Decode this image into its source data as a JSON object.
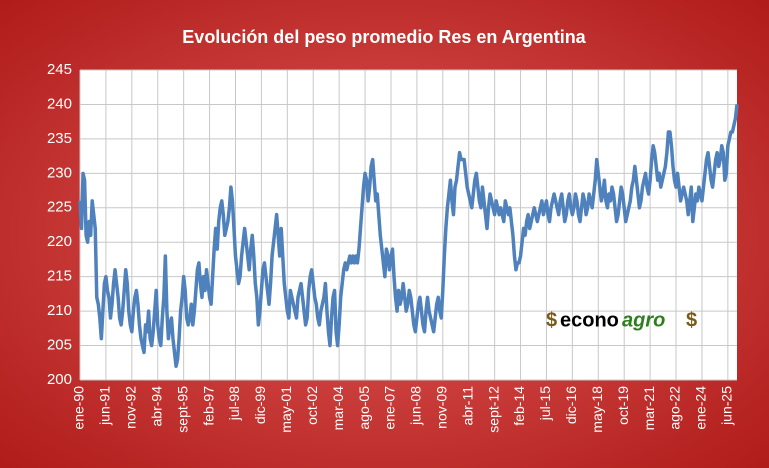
{
  "chart_data": {
    "type": "line",
    "title": "Evolución del peso promedio Res en Argentina",
    "logo": [
      "$",
      "econo",
      "agro",
      "$"
    ],
    "color": "#4f81bd",
    "grid": true,
    "ylim": [
      200,
      245
    ],
    "yticks": [
      200,
      205,
      210,
      215,
      220,
      225,
      230,
      235,
      240,
      245
    ],
    "categories": [
      "ene-90",
      null,
      null,
      null,
      null,
      null,
      null,
      null,
      null,
      null,
      null,
      null,
      null,
      null,
      null,
      null,
      null,
      "jun-91",
      null,
      null,
      null,
      null,
      null,
      null,
      null,
      null,
      null,
      null,
      null,
      null,
      null,
      null,
      null,
      null,
      "nov-92",
      null,
      null,
      null,
      null,
      null,
      null,
      null,
      null,
      null,
      null,
      null,
      null,
      null,
      null,
      null,
      null,
      "abr-94",
      null,
      null,
      null,
      null,
      null,
      null,
      null,
      null,
      null,
      null,
      null,
      null,
      null,
      null,
      null,
      null,
      "sept-95",
      null,
      null,
      null,
      null,
      null,
      null,
      null,
      null,
      null,
      null,
      null,
      null,
      null,
      null,
      null,
      null,
      "feb-97",
      null,
      null,
      null,
      null,
      null,
      null,
      null,
      null,
      null,
      null,
      null,
      null,
      null,
      null,
      null,
      null,
      "jul-98",
      null,
      null,
      null,
      null,
      null,
      null,
      null,
      null,
      null,
      null,
      null,
      null,
      null,
      null,
      null,
      null,
      "dic-99",
      null,
      null,
      null,
      null,
      null,
      null,
      null,
      null,
      null,
      null,
      null,
      null,
      null,
      null,
      null,
      null,
      "may-01",
      null,
      null,
      null,
      null,
      null,
      null,
      null,
      null,
      null,
      null,
      null,
      null,
      null,
      null,
      null,
      null,
      "oct-02",
      null,
      null,
      null,
      null,
      null,
      null,
      null,
      null,
      null,
      null,
      null,
      null,
      null,
      null,
      null,
      null,
      "mar-04",
      null,
      null,
      null,
      null,
      null,
      null,
      null,
      null,
      null,
      null,
      null,
      null,
      null,
      null,
      null,
      null,
      "ago-05",
      null,
      null,
      null,
      null,
      null,
      null,
      null,
      null,
      null,
      null,
      null,
      null,
      null,
      null,
      null,
      null,
      "ene-07",
      null,
      null,
      null,
      null,
      null,
      null,
      null,
      null,
      null,
      null,
      null,
      null,
      null,
      null,
      null,
      null,
      "jun-08",
      null,
      null,
      null,
      null,
      null,
      null,
      null,
      null,
      null,
      null,
      null,
      null,
      null,
      null,
      null,
      null,
      "nov-09",
      null,
      null,
      null,
      null,
      null,
      null,
      null,
      null,
      null,
      null,
      null,
      null,
      null,
      null,
      null,
      null,
      "abr-11",
      null,
      null,
      null,
      null,
      null,
      null,
      null,
      null,
      null,
      null,
      null,
      null,
      null,
      null,
      null,
      null,
      "sept-12",
      null,
      null,
      null,
      null,
      null,
      null,
      null,
      null,
      null,
      null,
      null,
      null,
      null,
      null,
      null,
      null,
      "feb-14",
      null,
      null,
      null,
      null,
      null,
      null,
      null,
      null,
      null,
      null,
      null,
      null,
      null,
      null,
      null,
      null,
      "jul-15",
      null,
      null,
      null,
      null,
      null,
      null,
      null,
      null,
      null,
      null,
      null,
      null,
      null,
      null,
      null,
      null,
      "dic-16",
      null,
      null,
      null,
      null,
      null,
      null,
      null,
      null,
      null,
      null,
      null,
      null,
      null,
      null,
      null,
      null,
      "may-18",
      null,
      null,
      null,
      null,
      null,
      null,
      null,
      null,
      null,
      null,
      null,
      null,
      null,
      null,
      null,
      null,
      "oct-19",
      null,
      null,
      null,
      null,
      null,
      null,
      null,
      null,
      null,
      null,
      null,
      null,
      null,
      null,
      null,
      null,
      "mar-21",
      null,
      null,
      null,
      null,
      null,
      null,
      null,
      null,
      null,
      null,
      null,
      null,
      null,
      null,
      null,
      null,
      "ago-22",
      null,
      null,
      null,
      null,
      null,
      null,
      null,
      null,
      null,
      null,
      null,
      null,
      null,
      null,
      null,
      null,
      "ene-24",
      null,
      null,
      null,
      null,
      null,
      null,
      null,
      null,
      null,
      null,
      null,
      null,
      null,
      null,
      null,
      null,
      "jun-25",
      null,
      null,
      null,
      null,
      null,
      null
    ],
    "values": [
      226,
      222,
      230,
      229,
      221,
      220,
      223,
      221,
      226,
      224,
      222,
      212,
      211,
      209,
      206,
      210,
      214,
      215,
      213,
      212,
      209,
      211,
      214,
      216,
      214,
      212,
      209,
      208,
      210,
      213,
      216,
      214,
      210,
      208,
      207,
      210,
      212,
      213,
      211,
      208,
      206,
      205,
      204,
      208,
      207,
      210,
      206,
      205,
      207,
      210,
      213,
      208,
      206,
      205,
      209,
      212,
      218,
      210,
      206,
      208,
      209,
      206,
      204,
      202,
      203,
      206,
      210,
      212,
      215,
      213,
      209,
      208,
      209,
      211,
      208,
      210,
      213,
      216,
      217,
      214,
      212,
      215,
      213,
      216,
      214,
      212,
      211,
      215,
      219,
      222,
      219,
      223,
      225,
      226,
      224,
      221,
      222,
      223,
      225,
      228,
      226,
      222,
      218,
      216,
      214,
      215,
      218,
      220,
      222,
      220,
      218,
      216,
      219,
      221,
      218,
      214,
      212,
      208,
      210,
      213,
      216,
      217,
      215,
      213,
      211,
      214,
      218,
      220,
      222,
      224,
      221,
      218,
      222,
      218,
      214,
      212,
      210,
      209,
      213,
      212,
      211,
      210,
      209,
      212,
      213,
      214,
      212,
      210,
      208,
      209,
      213,
      215,
      216,
      214,
      212,
      211,
      209,
      208,
      210,
      211,
      212,
      214,
      210,
      207,
      205,
      209,
      212,
      213,
      207,
      205,
      208,
      212,
      214,
      216,
      217,
      216,
      217,
      218,
      217,
      218,
      217,
      218,
      217,
      219,
      222,
      225,
      228,
      230,
      229,
      226,
      228,
      231,
      232,
      229,
      226,
      227,
      224,
      221,
      219,
      217,
      215,
      219,
      218,
      216,
      218,
      219,
      215,
      212,
      210,
      213,
      211,
      212,
      214,
      212,
      210,
      211,
      213,
      212,
      210,
      208,
      207,
      209,
      211,
      212,
      210,
      208,
      207,
      210,
      212,
      210,
      209,
      208,
      207,
      209,
      211,
      212,
      210,
      209,
      213,
      218,
      222,
      225,
      227,
      229,
      226,
      224,
      228,
      229,
      231,
      233,
      232,
      232,
      232,
      230,
      228,
      227,
      226,
      225,
      227,
      229,
      230,
      228,
      226,
      225,
      228,
      226,
      224,
      222,
      225,
      227,
      226,
      225,
      224,
      226,
      225,
      224,
      225,
      224,
      223,
      226,
      225,
      224,
      225,
      223,
      221,
      218,
      216,
      217,
      217,
      218,
      220,
      222,
      221,
      223,
      224,
      222,
      223,
      224,
      225,
      224,
      223,
      224,
      225,
      226,
      224,
      225,
      226,
      224,
      223,
      225,
      226,
      227,
      226,
      225,
      224,
      226,
      227,
      225,
      223,
      224,
      226,
      227,
      225,
      224,
      225,
      227,
      226,
      224,
      223,
      225,
      227,
      226,
      224,
      225,
      227,
      226,
      225,
      227,
      229,
      232,
      230,
      228,
      226,
      227,
      229,
      226,
      225,
      227,
      226,
      228,
      227,
      225,
      223,
      224,
      226,
      228,
      227,
      225,
      223,
      224,
      225,
      226,
      228,
      229,
      231,
      229,
      227,
      225,
      226,
      228,
      229,
      230,
      228,
      227,
      229,
      232,
      234,
      233,
      231,
      229,
      230,
      228,
      229,
      230,
      231,
      233,
      236,
      236,
      234,
      231,
      229,
      228,
      230,
      228,
      226,
      227,
      228,
      227,
      226,
      224,
      226,
      228,
      223,
      225,
      227,
      226,
      228,
      227,
      226,
      228,
      230,
      232,
      233,
      231,
      229,
      228,
      230,
      232,
      233,
      231,
      232,
      234,
      233,
      229,
      230,
      234,
      235,
      236,
      236,
      237,
      238,
      240
    ]
  }
}
